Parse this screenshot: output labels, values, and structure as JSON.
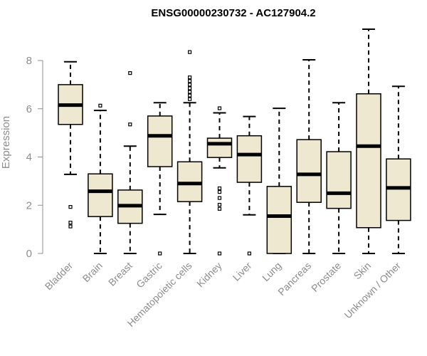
{
  "chart_data": {
    "type": "box",
    "title": "ENSG00000230732 - AC127904.2",
    "xlabel": "",
    "ylabel": "Expression",
    "ylim": [
      0,
      9.2
    ],
    "yticks": [
      0,
      2,
      4,
      6,
      8
    ],
    "box_fill": "#efe8d0",
    "box_stroke": "#000000",
    "axis_color": "#8c8c8c",
    "categories": [
      "Bladder",
      "Brain",
      "Breast",
      "Gastric",
      "Hematopoietic cells",
      "Kidney",
      "Liver",
      "Lung",
      "Pancreas",
      "Prostate",
      "Skin",
      "Unknown / Other"
    ],
    "boxes": [
      {
        "category": "Bladder",
        "whisker_low": 3.28,
        "q1": 5.35,
        "median": 6.15,
        "q3": 7.0,
        "whisker_high": 7.95,
        "outliers": [
          1.93,
          1.28,
          1.12
        ]
      },
      {
        "category": "Brain",
        "whisker_low": 0.0,
        "q1": 1.53,
        "median": 2.58,
        "q3": 3.3,
        "whisker_high": 5.93,
        "outliers": [
          6.13
        ]
      },
      {
        "category": "Breast",
        "whisker_low": 0.0,
        "q1": 1.25,
        "median": 1.98,
        "q3": 2.63,
        "whisker_high": 4.45,
        "outliers": [
          5.35,
          7.48
        ]
      },
      {
        "category": "Gastric",
        "whisker_low": 1.62,
        "q1": 3.6,
        "median": 4.88,
        "q3": 5.7,
        "whisker_high": 6.25,
        "outliers": [
          0.0
        ]
      },
      {
        "category": "Hematopoietic cells",
        "whisker_low": 0.0,
        "q1": 2.15,
        "median": 2.9,
        "q3": 3.8,
        "whisker_high": 6.25,
        "outliers": [
          6.4,
          6.55,
          6.7,
          6.85,
          7.0,
          7.15,
          7.3,
          8.35
        ]
      },
      {
        "category": "Kidney",
        "whisker_low": 3.55,
        "q1": 3.98,
        "median": 4.55,
        "q3": 4.78,
        "whisker_high": 5.83,
        "outliers": [
          6.02,
          2.7,
          2.55,
          2.3,
          2.02,
          1.85,
          0.0
        ]
      },
      {
        "category": "Liver",
        "whisker_low": 1.6,
        "q1": 2.95,
        "median": 4.1,
        "q3": 4.88,
        "whisker_high": 5.68,
        "outliers": [
          0.0
        ]
      },
      {
        "category": "Lung",
        "whisker_low": 0.0,
        "q1": 0.0,
        "median": 1.55,
        "q3": 2.78,
        "whisker_high": 6.02,
        "outliers": []
      },
      {
        "category": "Pancreas",
        "whisker_low": 0.0,
        "q1": 2.12,
        "median": 3.28,
        "q3": 4.72,
        "whisker_high": 8.03,
        "outliers": []
      },
      {
        "category": "Prostate",
        "whisker_low": 0.0,
        "q1": 1.87,
        "median": 2.5,
        "q3": 4.22,
        "whisker_high": 6.25,
        "outliers": []
      },
      {
        "category": "Skin",
        "whisker_low": 0.0,
        "q1": 1.07,
        "median": 4.45,
        "q3": 6.62,
        "whisker_high": 9.3,
        "outliers": []
      },
      {
        "category": "Unknown / Other",
        "whisker_low": 0.0,
        "q1": 1.37,
        "median": 2.72,
        "q3": 3.92,
        "whisker_high": 6.93,
        "outliers": []
      }
    ]
  }
}
